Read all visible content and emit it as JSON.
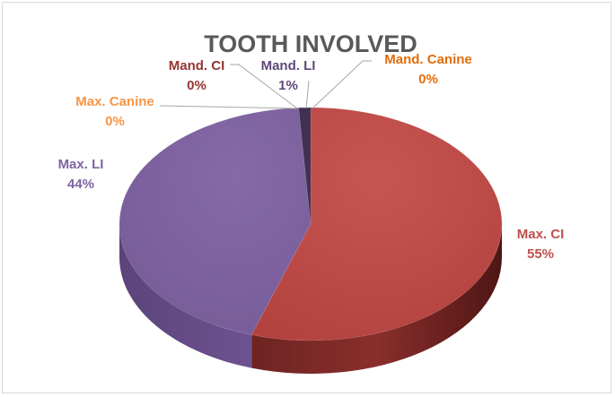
{
  "chart_data": {
    "type": "pie",
    "title": "TOOTH INVOLVED",
    "slices": [
      {
        "name": "Max. CI",
        "value": 55,
        "label": "55%",
        "color": "#c0504d"
      },
      {
        "name": "Max. LI",
        "value": 44,
        "label": "44%",
        "color": "#8064a2"
      },
      {
        "name": "Max. Canine",
        "value": 0,
        "label": "0%",
        "color": "#f79646"
      },
      {
        "name": "Mand. CI",
        "value": 0,
        "label": "0%",
        "color": "#943634"
      },
      {
        "name": "Mand. LI",
        "value": 1,
        "label": "1%",
        "color": "#403152"
      },
      {
        "name": "Mand. Canine",
        "value": 0,
        "label": "0%",
        "color": "#e36c09"
      }
    ],
    "label_colors": {
      "Max. CI": "#c0504d",
      "Max. LI": "#8064a2",
      "Max. Canine": "#f79646",
      "Mand. CI": "#943634",
      "Mand. LI": "#5f497a",
      "Mand. Canine": "#e36c09"
    },
    "legend": "none"
  }
}
